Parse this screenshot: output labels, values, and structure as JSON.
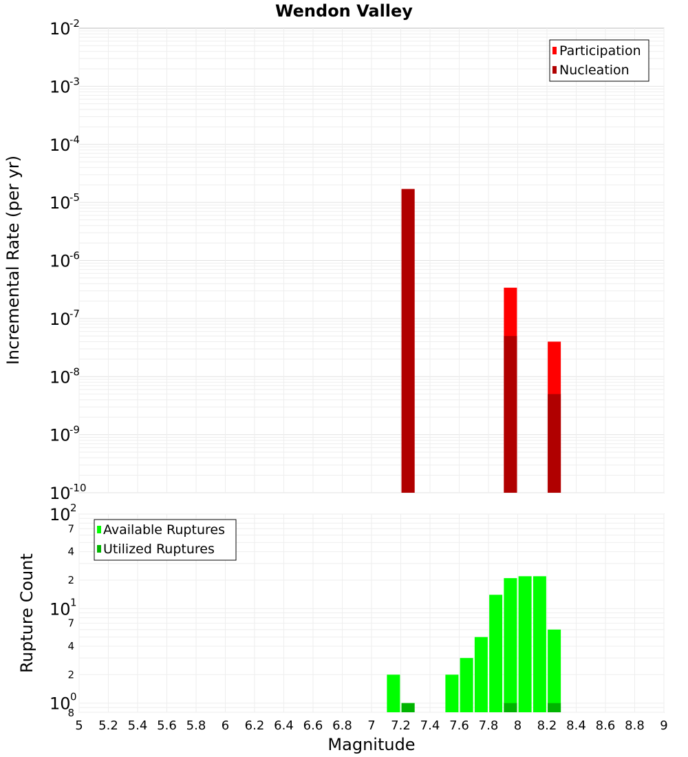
{
  "chart_data": [
    {
      "type": "bar",
      "title": "Wendon Valley",
      "xlabel": "",
      "ylabel": "Incremental Rate (per yr)",
      "yscale": "log",
      "xlim": [
        5,
        9
      ],
      "ylim": [
        1e-10,
        0.01
      ],
      "grid": true,
      "legend_position": "top-right",
      "y_tick_exponents": [
        "-2",
        "-3",
        "-4",
        "-5",
        "-6",
        "-7",
        "-8",
        "-9",
        "-10"
      ],
      "y_tick_base": "10",
      "series": [
        {
          "name": "Participation",
          "color": "#ff0000",
          "x": [
            7.25,
            7.95,
            8.25
          ],
          "values": [
            1.7e-05,
            3.4e-07,
            4e-08
          ]
        },
        {
          "name": "Nucleation",
          "color": "#b00000",
          "x": [
            7.25,
            7.95,
            8.25
          ],
          "values": [
            1.7e-05,
            5e-08,
            5e-09
          ]
        }
      ]
    },
    {
      "type": "bar",
      "title": "",
      "xlabel": "Magnitude",
      "ylabel": "Rupture Count",
      "yscale": "log",
      "xlim": [
        5,
        9
      ],
      "ylim": [
        0.8,
        100
      ],
      "grid": true,
      "legend_position": "top-left",
      "x_ticks": [
        "5",
        "5.2",
        "5.4",
        "5.6",
        "5.8",
        "6",
        "6.2",
        "6.4",
        "6.6",
        "6.8",
        "7",
        "7.2",
        "7.4",
        "7.6",
        "7.8",
        "8",
        "8.2",
        "8.4",
        "8.6",
        "8.8",
        "9"
      ],
      "y_major_labels": [
        {
          "v": 100,
          "base": "10",
          "exp": "2"
        },
        {
          "v": 10,
          "base": "10",
          "exp": "1"
        },
        {
          "v": 1,
          "base": "10",
          "exp": "0"
        }
      ],
      "y_minor_labels": [
        {
          "v": 70,
          "text": "7"
        },
        {
          "v": 40,
          "text": "4"
        },
        {
          "v": 20,
          "text": "2"
        },
        {
          "v": 7,
          "text": "7"
        },
        {
          "v": 4,
          "text": "4"
        },
        {
          "v": 2,
          "text": "2"
        },
        {
          "v": 0.8,
          "text": "8"
        }
      ],
      "series": [
        {
          "name": "Available Ruptures",
          "color": "#00ff00",
          "x": [
            7.15,
            7.25,
            7.55,
            7.65,
            7.75,
            7.85,
            7.95,
            8.05,
            8.15,
            8.25
          ],
          "values": [
            2,
            1,
            2,
            3,
            5,
            14,
            21,
            22,
            22,
            6
          ]
        },
        {
          "name": "Utilized Ruptures",
          "color": "#00b400",
          "x": [
            7.25,
            7.95,
            8.25
          ],
          "values": [
            1,
            1,
            1
          ]
        }
      ]
    }
  ]
}
